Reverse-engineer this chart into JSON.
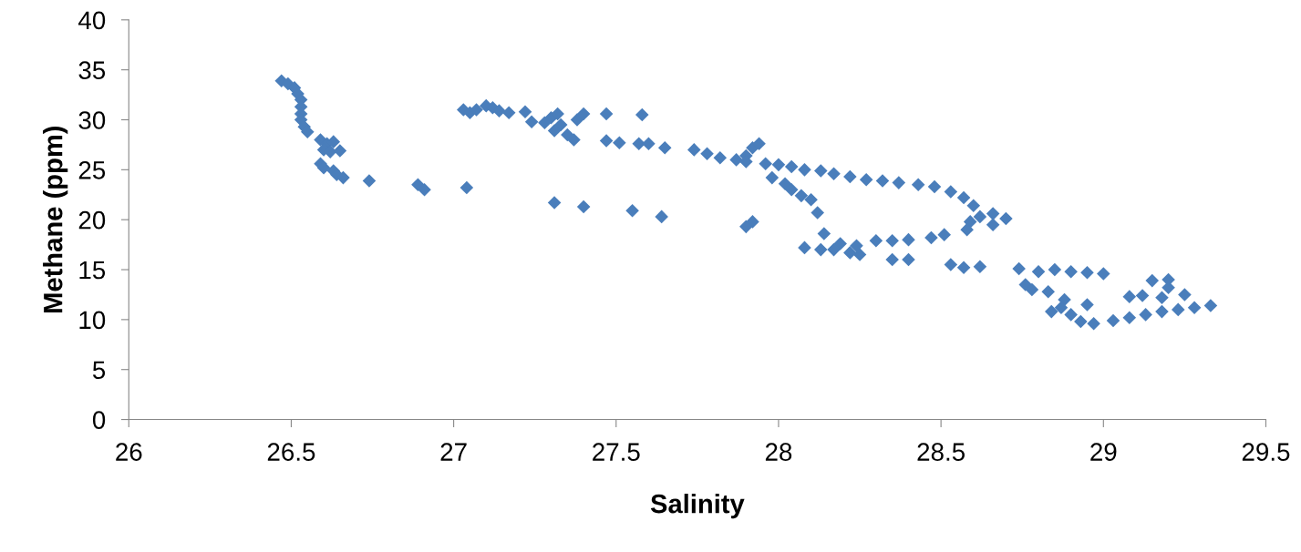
{
  "chart_data": {
    "type": "scatter",
    "xlabel": "Salinity",
    "ylabel": "Methane (ppm)",
    "marker": "diamond",
    "grid": false,
    "legend": false,
    "xlim": [
      26,
      29.5
    ],
    "xticks": [
      26,
      26.5,
      27,
      27.5,
      28,
      28.5,
      29,
      29.5
    ],
    "ylim": [
      0,
      40
    ],
    "yticks": [
      0,
      5,
      10,
      15,
      20,
      25,
      30,
      35,
      40
    ],
    "series": [
      {
        "color": "#4a7ebb",
        "x": [
          26.47,
          26.49,
          26.51,
          26.52,
          26.53,
          26.53,
          26.53,
          26.53,
          26.54,
          26.55,
          26.59,
          26.61,
          26.63,
          26.6,
          26.62,
          26.65,
          26.59,
          26.6,
          26.63,
          26.64,
          26.66,
          26.74,
          26.89,
          26.91,
          27.04,
          27.31,
          27.4,
          27.55,
          27.64,
          27.03,
          27.05,
          27.07,
          27.1,
          27.12,
          27.14,
          27.17,
          27.22,
          27.24,
          27.28,
          27.3,
          27.32,
          27.33,
          27.31,
          27.35,
          27.37,
          27.38,
          27.4,
          27.47,
          27.58,
          27.47,
          27.51,
          27.57,
          27.6,
          27.65,
          27.74,
          27.78,
          27.82,
          27.87,
          27.9,
          27.92,
          27.94,
          27.9,
          27.96,
          28.0,
          28.04,
          28.08,
          27.98,
          28.02,
          28.04,
          28.07,
          28.1,
          28.12,
          27.92,
          27.9,
          28.13,
          28.17,
          28.22,
          28.27,
          28.32,
          28.37,
          28.43,
          28.48,
          28.53,
          28.57,
          28.6,
          28.62,
          28.59,
          28.66,
          28.7,
          28.66,
          28.58,
          28.51,
          28.47,
          28.4,
          28.35,
          28.3,
          28.24,
          28.19,
          28.14,
          28.08,
          28.13,
          28.17,
          28.22,
          28.25,
          28.35,
          28.4,
          28.53,
          28.57,
          28.62,
          28.74,
          28.8,
          28.85,
          28.9,
          28.95,
          29.0,
          28.76,
          28.78,
          28.83,
          28.88,
          28.87,
          28.84,
          28.9,
          28.93,
          28.97,
          29.03,
          29.08,
          29.13,
          29.18,
          29.23,
          29.28,
          29.33,
          29.25,
          29.2,
          29.15,
          29.2,
          29.08,
          29.12,
          29.18,
          28.95
        ],
        "values": [
          33.9,
          33.6,
          33.2,
          32.6,
          32.0,
          31.3,
          30.6,
          30.0,
          29.3,
          28.8,
          28.0,
          27.6,
          27.8,
          27.0,
          26.8,
          26.9,
          25.6,
          25.2,
          24.9,
          24.5,
          24.2,
          23.9,
          23.5,
          23.0,
          23.2,
          21.7,
          21.3,
          20.9,
          20.3,
          31.0,
          30.7,
          31.0,
          31.4,
          31.2,
          30.9,
          30.7,
          30.8,
          29.8,
          29.7,
          30.2,
          30.6,
          29.5,
          28.9,
          28.5,
          28.0,
          30.0,
          30.6,
          30.6,
          30.5,
          27.9,
          27.7,
          27.6,
          27.6,
          27.2,
          27.0,
          26.6,
          26.2,
          26.0,
          26.4,
          27.2,
          27.6,
          25.8,
          25.6,
          25.5,
          25.3,
          25.0,
          24.2,
          23.6,
          23.0,
          22.4,
          22.0,
          20.7,
          19.8,
          19.3,
          24.9,
          24.6,
          24.3,
          24.0,
          23.9,
          23.7,
          23.5,
          23.3,
          22.8,
          22.2,
          21.4,
          20.3,
          19.8,
          20.6,
          20.1,
          19.5,
          19.0,
          18.5,
          18.2,
          18.0,
          17.9,
          17.9,
          17.4,
          17.6,
          18.6,
          17.2,
          17.0,
          17.0,
          16.7,
          16.5,
          16.0,
          16.0,
          15.5,
          15.2,
          15.3,
          15.1,
          14.8,
          15.0,
          14.8,
          14.7,
          14.6,
          13.5,
          13.0,
          12.8,
          12.0,
          11.2,
          10.8,
          10.5,
          9.8,
          9.6,
          9.9,
          10.2,
          10.5,
          10.8,
          11.0,
          11.2,
          11.4,
          12.5,
          13.2,
          13.9,
          14.0,
          12.3,
          12.4,
          12.2,
          11.5
        ]
      }
    ]
  }
}
